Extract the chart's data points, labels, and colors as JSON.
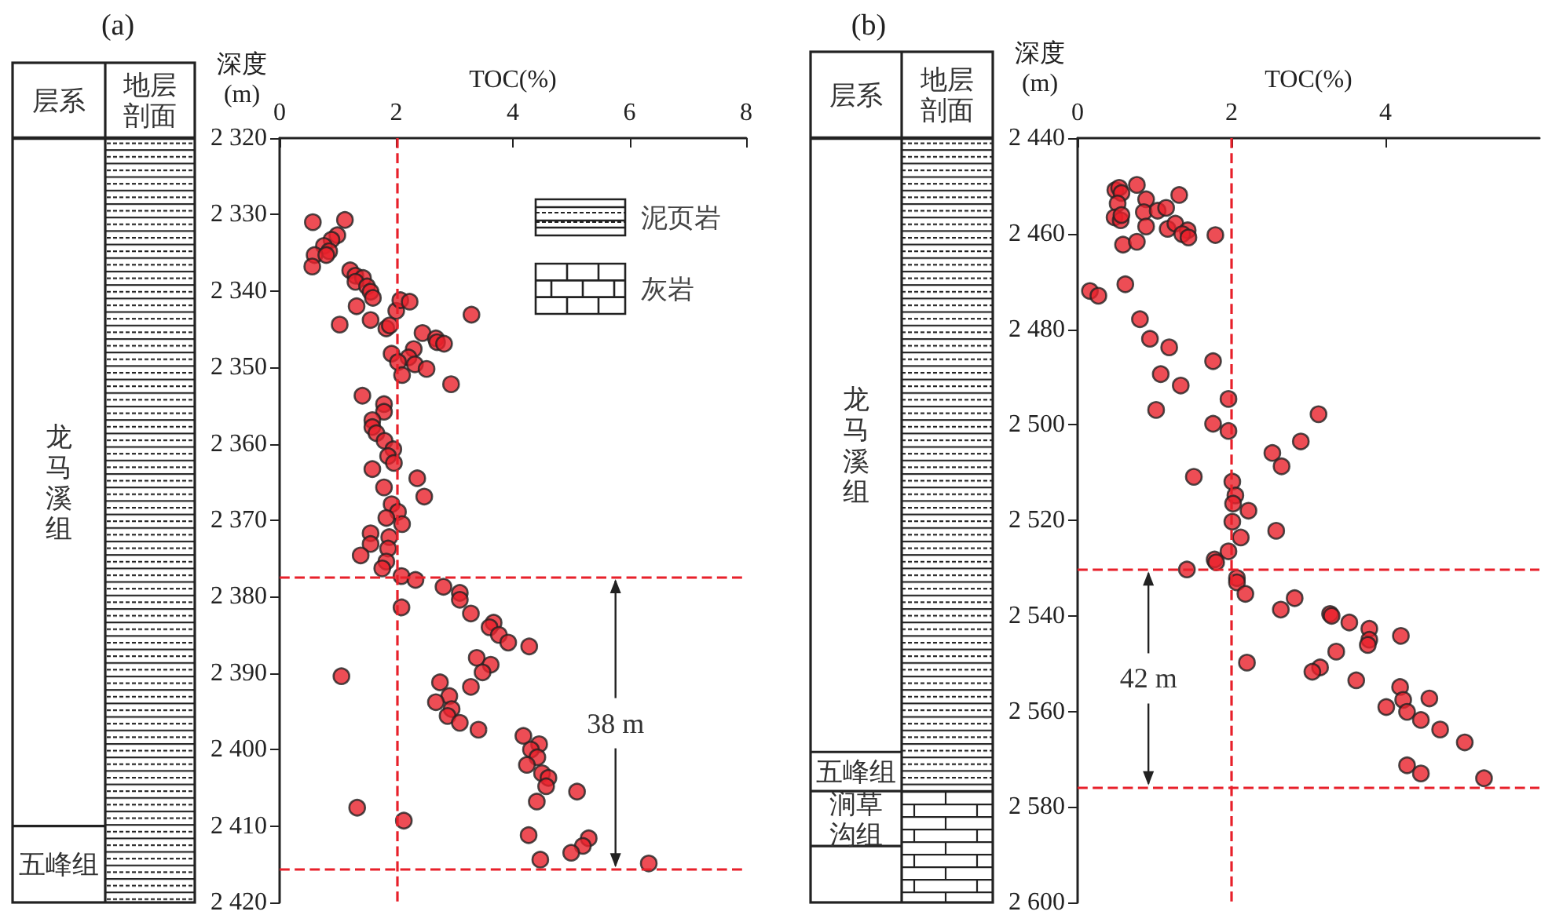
{
  "chart_data": [
    {
      "type": "scatter",
      "title": "(a)",
      "xlabel": "TOC(%)",
      "ylabel": "深度\n(m)",
      "color": "#e8202a",
      "marker": "circle",
      "grid": false,
      "x": [
        0.57,
        1.12,
        0.99,
        0.89,
        0.76,
        0.85,
        0.6,
        0.8,
        0.56,
        1.21,
        1.3,
        1.43,
        1.3,
        1.5,
        1.56,
        1.6,
        1.32,
        1.56,
        1.03,
        1.83,
        1.89,
        2.0,
        2.07,
        2.23,
        3.29,
        2.45,
        2.68,
        2.7,
        2.82,
        1.92,
        2.3,
        2.21,
        2.03,
        2.32,
        2.52,
        2.1,
        2.94,
        1.42,
        1.79,
        1.79,
        1.59,
        1.59,
        1.66,
        1.8,
        1.95,
        1.86,
        1.96,
        1.59,
        2.36,
        1.79,
        2.48,
        1.92,
        2.03,
        1.83,
        2.1,
        1.56,
        1.56,
        1.88,
        1.86,
        1.39,
        1.83,
        1.76,
        2.09,
        2.33,
        2.09,
        2.81,
        3.09,
        3.09,
        3.28,
        3.67,
        3.6,
        3.76,
        3.92,
        4.28,
        3.38,
        3.62,
        3.48,
        1.06,
        2.75,
        3.28,
        2.91,
        2.95,
        2.68,
        2.88,
        3.09,
        3.41,
        4.18,
        4.45,
        4.31,
        4.42,
        4.24,
        4.5,
        4.61,
        4.57,
        5.1,
        4.41,
        1.33,
        2.13,
        4.27,
        5.3,
        5.2,
        5.0,
        4.47,
        6.33
      ],
      "values": [
        2331.0,
        2330.7,
        2332.7,
        2333.3,
        2334.1,
        2334.8,
        2335.3,
        2335.3,
        2336.8,
        2337.3,
        2338.0,
        2338.3,
        2338.8,
        2339.4,
        2340.1,
        2340.9,
        2342.0,
        2343.8,
        2344.4,
        2344.9,
        2344.5,
        2342.6,
        2341.2,
        2341.4,
        2343.1,
        2345.5,
        2346.2,
        2346.7,
        2346.9,
        2348.2,
        2347.6,
        2348.7,
        2349.3,
        2349.6,
        2350.2,
        2351.0,
        2352.2,
        2353.7,
        2354.8,
        2355.8,
        2356.9,
        2357.8,
        2358.6,
        2359.6,
        2360.7,
        2361.6,
        2362.5,
        2363.3,
        2364.5,
        2365.7,
        2366.9,
        2367.9,
        2368.9,
        2369.7,
        2370.5,
        2371.7,
        2373.1,
        2372.2,
        2373.7,
        2374.6,
        2375.4,
        2376.3,
        2377.3,
        2377.8,
        2381.4,
        2378.7,
        2379.5,
        2380.4,
        2382.2,
        2383.4,
        2384.0,
        2385.0,
        2386.0,
        2386.5,
        2388.0,
        2388.9,
        2389.9,
        2390.4,
        2391.2,
        2391.8,
        2393.0,
        2394.7,
        2393.8,
        2395.6,
        2396.5,
        2397.4,
        2398.2,
        2399.3,
        2400.0,
        2401.0,
        2402.0,
        2403.1,
        2403.7,
        2404.8,
        2405.5,
        2406.8,
        2407.6,
        2409.3,
        2411.2,
        2411.6,
        2412.6,
        2413.5,
        2414.4,
        2414.9
      ],
      "xlim": [
        0,
        8
      ],
      "xticks": [
        0,
        2,
        4,
        6,
        8
      ],
      "ylim": [
        2420,
        2320
      ],
      "yticks": [
        {
          "value": 2320,
          "label": "2 320"
        },
        {
          "value": 2330,
          "label": "2 330"
        },
        {
          "value": 2340,
          "label": "2 340"
        },
        {
          "value": 2350,
          "label": "2 350"
        },
        {
          "value": 2360,
          "label": "2 360"
        },
        {
          "value": 2370,
          "label": "2 370"
        },
        {
          "value": 2380,
          "label": "2 380"
        },
        {
          "value": 2390,
          "label": "2 390"
        },
        {
          "value": 2400,
          "label": "2 400"
        },
        {
          "value": 2410,
          "label": "2 410"
        },
        {
          "value": 2420,
          "label": "2 420"
        }
      ],
      "ref_lines": [
        {
          "axis": "x",
          "value": 2,
          "color": "#e8202a",
          "line_style": "dashed"
        },
        {
          "axis": "y",
          "value": 2377.5,
          "color": "#e8202a",
          "line_style": "dashed"
        },
        {
          "axis": "y",
          "value": 2415.6,
          "color": "#e8202a",
          "line_style": "dashed"
        }
      ],
      "annotations": [
        "层系",
        "地层剖面",
        "龙马溪组",
        "五峰组",
        "泥页岩",
        "灰岩",
        {
          "text": "38 m",
          "x": 5.76,
          "y": 2377.5
        }
      ]
    },
    {
      "type": "scatter",
      "title": "(b)",
      "xlabel": "TOC(%)",
      "ylabel": "深度\n(m)",
      "color": "#e8202a",
      "marker": "circle",
      "grid": false,
      "x": [
        0.49,
        0.54,
        0.57,
        0.77,
        0.52,
        0.89,
        1.32,
        0.48,
        0.56,
        0.57,
        0.86,
        1.04,
        1.15,
        0.89,
        1.17,
        1.27,
        1.43,
        1.36,
        1.44,
        1.79,
        0.59,
        0.77,
        0.16,
        0.27,
        0.62,
        0.81,
        0.94,
        1.19,
        1.76,
        1.08,
        1.34,
        1.02,
        1.96,
        1.76,
        1.96,
        3.13,
        2.9,
        2.53,
        2.65,
        1.51,
        2.01,
        2.05,
        2.02,
        2.22,
        2.01,
        2.58,
        2.12,
        1.96,
        1.78,
        1.8,
        1.42,
        2.07,
        2.07,
        2.18,
        2.64,
        2.82,
        3.28,
        3.3,
        3.53,
        3.79,
        3.79,
        3.77,
        4.2,
        3.36,
        2.2,
        3.15,
        3.05,
        3.62,
        4.19,
        4.23,
        4.57,
        4.01,
        4.28,
        4.46,
        4.71,
        5.03,
        4.28,
        4.46,
        5.28
      ],
      "values": [
        2450.9,
        2450.4,
        2451.5,
        2449.8,
        2453.7,
        2452.8,
        2451.9,
        2456.6,
        2457.2,
        2456.1,
        2455.5,
        2455.2,
        2454.6,
        2458.5,
        2459.0,
        2457.9,
        2459.3,
        2460.1,
        2460.8,
        2460.3,
        2462.3,
        2461.7,
        2472.0,
        2473.0,
        2470.6,
        2477.9,
        2482.0,
        2483.8,
        2486.7,
        2489.4,
        2491.8,
        2496.9,
        2494.6,
        2499.8,
        2501.3,
        2497.8,
        2503.5,
        2505.9,
        2508.7,
        2510.9,
        2511.9,
        2514.8,
        2516.5,
        2518.0,
        2520.3,
        2522.2,
        2523.6,
        2526.5,
        2528.2,
        2528.8,
        2530.3,
        2532.1,
        2533.0,
        2535.4,
        2538.7,
        2536.3,
        2539.6,
        2540.0,
        2541.4,
        2542.7,
        2545.0,
        2546.1,
        2544.2,
        2547.5,
        2549.8,
        2550.8,
        2551.7,
        2553.5,
        2554.9,
        2557.6,
        2557.3,
        2559.1,
        2560.1,
        2561.8,
        2563.8,
        2566.5,
        2571.3,
        2573.0,
        2574.0
      ],
      "xlim": [
        0,
        6
      ],
      "xticks": [
        0,
        2,
        4
      ],
      "ylim": [
        2600,
        2440
      ],
      "yticks": [
        {
          "value": 2440,
          "label": "2 440"
        },
        {
          "value": 2460,
          "label": "2 460"
        },
        {
          "value": 2480,
          "label": "2 480"
        },
        {
          "value": 2500,
          "label": "2 500"
        },
        {
          "value": 2520,
          "label": "2 520"
        },
        {
          "value": 2540,
          "label": "2 540"
        },
        {
          "value": 2560,
          "label": "2 560"
        },
        {
          "value": 2580,
          "label": "2 580"
        },
        {
          "value": 2600,
          "label": "2 600"
        }
      ],
      "ref_lines": [
        {
          "axis": "x",
          "value": 2,
          "color": "#e8202a",
          "line_style": "dashed"
        },
        {
          "axis": "y",
          "value": 2530.4,
          "color": "#e8202a",
          "line_style": "dashed"
        },
        {
          "axis": "y",
          "value": 2575.8,
          "color": "#e8202a",
          "line_style": "dashed"
        }
      ],
      "annotations": [
        "层系",
        "地层剖面",
        "龙马溪组",
        "五峰组",
        "涧草沟组",
        {
          "text": "42 m",
          "x": 0.92,
          "y": 2530.4
        }
      ]
    }
  ]
}
